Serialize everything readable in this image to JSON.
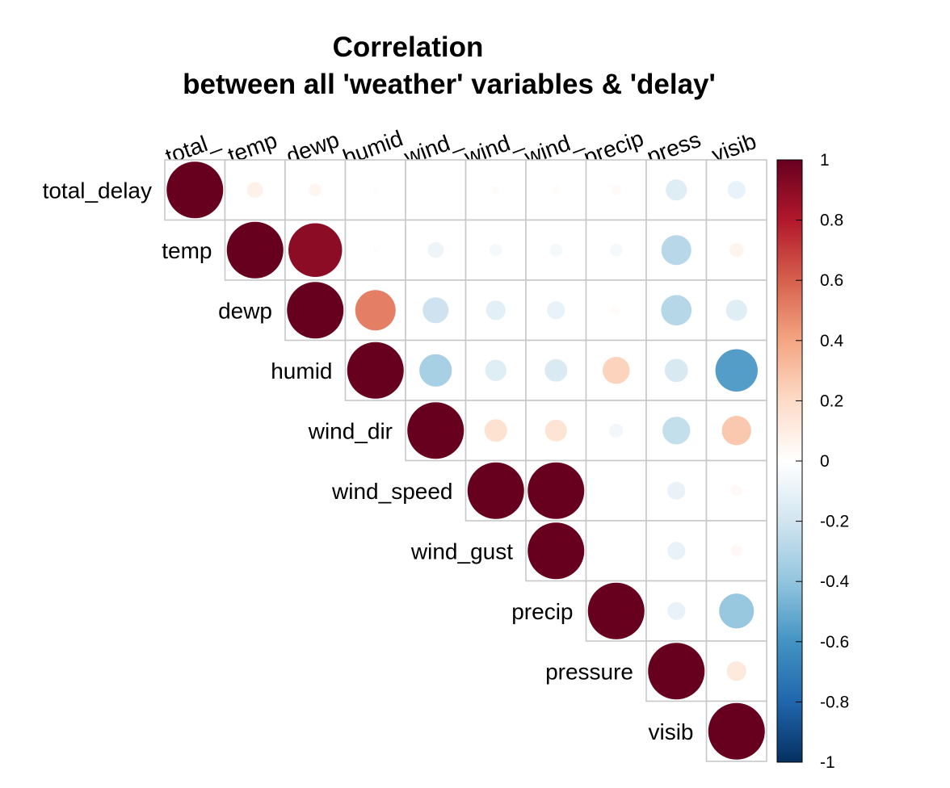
{
  "chart_data": {
    "type": "heatmap",
    "title_line1": "Correlation",
    "title_line2": "between all 'weather' variables & 'delay'",
    "variables": [
      "total_delay",
      "temp",
      "dewp",
      "humid",
      "wind_dir",
      "wind_speed",
      "wind_gust",
      "precip",
      "pressure",
      "visib"
    ],
    "column_labels_visible": [
      "total_",
      "temp",
      "dewp",
      "humid",
      "wind_",
      "wind_",
      "wind_",
      "precip",
      "press",
      "visib"
    ],
    "layout": "upper-triangle",
    "matrix": [
      [
        1.0,
        0.08,
        0.05,
        0.01,
        0.0,
        0.02,
        0.02,
        0.03,
        -0.14,
        -0.1
      ],
      [
        null,
        1.0,
        0.9,
        0.01,
        -0.08,
        -0.05,
        -0.05,
        -0.05,
        -0.28,
        0.06
      ],
      [
        null,
        null,
        1.0,
        0.51,
        -0.21,
        -0.12,
        -0.1,
        0.02,
        -0.29,
        -0.14
      ],
      [
        null,
        null,
        null,
        1.0,
        -0.33,
        -0.14,
        -0.16,
        0.23,
        -0.17,
        -0.56
      ],
      [
        null,
        null,
        null,
        null,
        1.0,
        0.16,
        0.15,
        -0.06,
        -0.24,
        0.27
      ],
      [
        null,
        null,
        null,
        null,
        null,
        1.0,
        1.0,
        0.0,
        -0.1,
        0.04
      ],
      [
        null,
        null,
        null,
        null,
        null,
        null,
        1.0,
        0.0,
        -0.1,
        0.04
      ],
      [
        null,
        null,
        null,
        null,
        null,
        null,
        null,
        1.0,
        -0.1,
        -0.38
      ],
      [
        null,
        null,
        null,
        null,
        null,
        null,
        null,
        null,
        1.0,
        0.12
      ],
      [
        null,
        null,
        null,
        null,
        null,
        null,
        null,
        null,
        null,
        1.0
      ]
    ],
    "colorbar": {
      "ticks": [
        "1",
        "0.8",
        "0.6",
        "0.4",
        "0.2",
        "0",
        "-0.2",
        "-0.4",
        "-0.6",
        "-0.8",
        "-1"
      ],
      "range": [
        -1,
        1
      ],
      "colors": [
        "#67001F",
        "#B2182B",
        "#D6604D",
        "#F4A582",
        "#FDDBC7",
        "#FFFFFF",
        "#D1E5F0",
        "#92C5DE",
        "#4393C3",
        "#2166AC",
        "#053061"
      ]
    }
  }
}
